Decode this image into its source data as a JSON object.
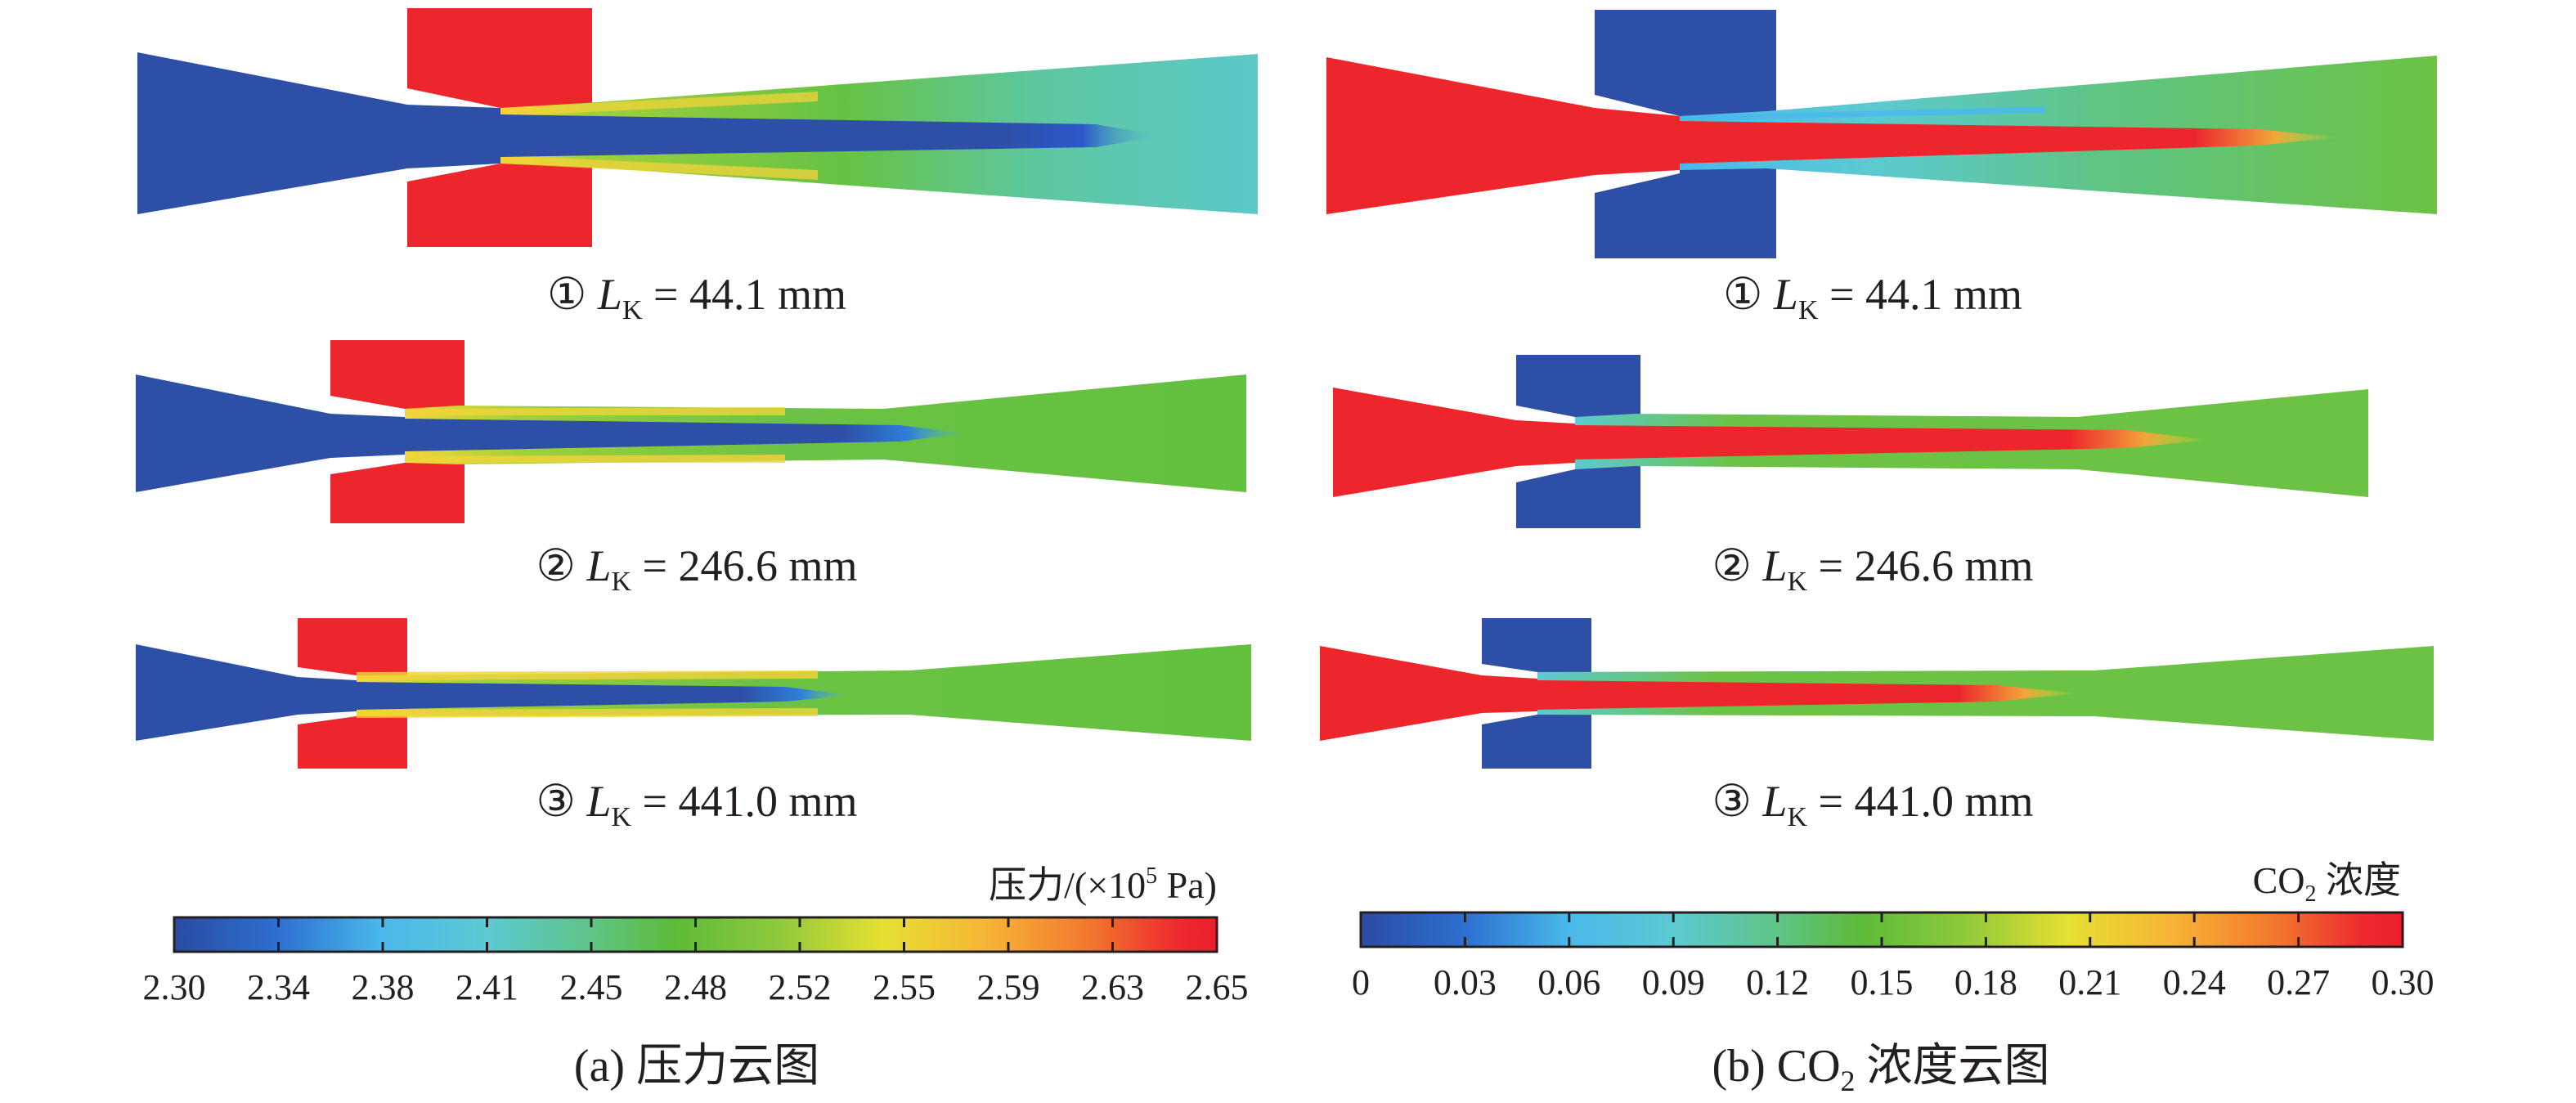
{
  "figure": {
    "panel_a": {
      "caption": "(a) 压力云图",
      "colorbar": {
        "title_prefix": "压力/(×10",
        "title_sup": "5",
        "title_suffix": " Pa)",
        "tick_labels": [
          "2.30",
          "2.34",
          "2.38",
          "2.41",
          "2.45",
          "2.48",
          "2.52",
          "2.55",
          "2.59",
          "2.63",
          "2.65"
        ],
        "range": [
          2.3,
          2.65
        ],
        "colormap": [
          "#2b4ba3",
          "#2e6fd0",
          "#4ab9ea",
          "#5ccad2",
          "#5fc486",
          "#5dbb3a",
          "#8fc93c",
          "#e6e033",
          "#f6b437",
          "#f2762f",
          "#ed2b2f",
          "#ec1f2c"
        ]
      },
      "cases": [
        {
          "circle": "①",
          "label_var": "L",
          "label_sub": "K",
          "label_rest": " = 44.1 mm"
        },
        {
          "circle": "②",
          "label_var": "L",
          "label_sub": "K",
          "label_rest": " = 246.6 mm"
        },
        {
          "circle": "③",
          "label_var": "L",
          "label_sub": "K",
          "label_rest": " = 441.0 mm"
        }
      ],
      "field_colors": {
        "primary_inlet": "#2e4fa6",
        "secondary_inlet": "#ec262c",
        "outlet": "#5cc8c9",
        "mixing": "#6cc244"
      }
    },
    "panel_b": {
      "caption_prefix": "(b) CO",
      "caption_sub": "2",
      "caption_suffix": " 浓度云图",
      "colorbar": {
        "title_prefix": "CO",
        "title_sub": "2",
        "title_suffix": " 浓度",
        "tick_labels": [
          "0",
          "0.03",
          "0.06",
          "0.09",
          "0.12",
          "0.15",
          "0.18",
          "0.21",
          "0.24",
          "0.27",
          "0.30"
        ],
        "range": [
          0,
          0.3
        ],
        "colormap": [
          "#2b4ba3",
          "#2e6fd0",
          "#4ab9ea",
          "#5ccad2",
          "#5fc486",
          "#5dbb3a",
          "#8fc93c",
          "#e6e033",
          "#f6b437",
          "#f2762f",
          "#ed2b2f",
          "#ec1f2c"
        ]
      },
      "cases": [
        {
          "circle": "①",
          "label_var": "L",
          "label_sub": "K",
          "label_rest": " = 44.1 mm"
        },
        {
          "circle": "②",
          "label_var": "L",
          "label_sub": "K",
          "label_rest": " = 246.6 mm"
        },
        {
          "circle": "③",
          "label_var": "L",
          "label_sub": "K",
          "label_rest": " = 441.0 mm"
        }
      ],
      "field_colors": {
        "primary_inlet": "#ec262c",
        "secondary_inlet": "#2e4fa6",
        "mixing": "#6cc244"
      }
    }
  }
}
